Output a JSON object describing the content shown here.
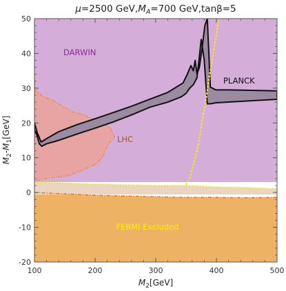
{
  "chart_data": {
    "type": "area",
    "title": "μ=2500 GeV,M_A=700 GeV,tanβ=5",
    "title_parts": {
      "mu": "μ",
      "mu_val": "=2500 GeV,",
      "ma": "M",
      "ma_sub": "A",
      "ma_val": "=700 GeV,tanβ=5"
    },
    "xlabel": "M₂[GeV]",
    "xlabel_parts": {
      "main": "M",
      "sub": "2",
      "unit": "[GeV]"
    },
    "ylabel": "M₂-M₁[GeV]",
    "ylabel_parts": {
      "m2": "M",
      "m2_sub": "2",
      "dash": "-",
      "m1": "M",
      "m1_sub": "1",
      "unit": "[GeV]"
    },
    "xlim": [
      100,
      500
    ],
    "ylim": [
      -20,
      50
    ],
    "xticks": [
      100,
      200,
      300,
      400,
      500
    ],
    "yticks": [
      -20,
      -10,
      0,
      10,
      20,
      30,
      40,
      50
    ],
    "grid": false,
    "colors": {
      "darwin_fill": "#d4aed8",
      "fermi_fill": "#eeb264",
      "fermi_line": "#e06a28",
      "lhc_fill": "#e9a39e",
      "lhc_line": "#f08a3a",
      "planck_fill": "#9b8aa2",
      "planck_line": "#111111",
      "yellow_line": "#f4e61e",
      "yellow_band": "#e9d5c0",
      "darwin_text": "#8e2a96",
      "lhc_text": "#b8541a",
      "fermi_text": "#ffee00",
      "planck_text": "#111111"
    },
    "labels": {
      "darwin": "DARWIN",
      "planck": "PLANCK",
      "lhc": "LHC",
      "fermi": "FERMI Excluded"
    },
    "regions": {
      "darwin": {
        "name": "DARWIN",
        "x": [
          100,
          500,
          500,
          100
        ],
        "y": [
          50,
          50,
          3,
          3
        ]
      },
      "yellow_band": {
        "x": [
          100,
          150,
          200,
          250,
          300,
          350,
          400,
          450,
          500,
          500,
          100
        ],
        "y": [
          3,
          2.7,
          2.4,
          2.2,
          2.0,
          2.0,
          1.6,
          1.4,
          1.0,
          -0.6,
          -0.6
        ]
      },
      "fermi": {
        "name": "FERMI Excluded",
        "boundary_x": [
          100,
          150,
          200,
          250,
          300,
          350,
          400,
          450,
          500
        ],
        "boundary_y": [
          0.0,
          -0.4,
          -0.8,
          -1.0,
          -1.2,
          -1.4,
          -1.4,
          -1.5,
          -1.4
        ]
      },
      "lhc": {
        "name": "LHC",
        "x": [
          100,
          101,
          103,
          108,
          115,
          123,
          130,
          140,
          150,
          165,
          180,
          190,
          200,
          215,
          225,
          232,
          222,
          212,
          200,
          180,
          160,
          140,
          120,
          105,
          100
        ],
        "y": [
          34,
          30,
          29,
          28.5,
          27.5,
          27,
          26.5,
          25.5,
          24.5,
          23,
          22.5,
          21.5,
          21,
          20,
          18.5,
          16,
          14,
          10,
          8,
          6.5,
          5,
          4.5,
          4,
          3.5,
          3.5
        ]
      },
      "planck": {
        "name": "PLANCK",
        "upper_x": [
          100,
          105,
          111,
          120,
          140,
          170,
          200,
          230,
          260,
          290,
          320,
          345,
          352,
          358,
          362,
          365,
          368,
          372,
          376,
          381,
          385,
          390,
          398,
          400,
          420,
          450,
          480,
          500
        ],
        "upper_y": [
          20,
          17,
          14.5,
          15.5,
          17.5,
          19.5,
          21.2,
          23,
          24.8,
          26.8,
          28.8,
          31.5,
          34,
          36.5,
          35,
          38,
          34,
          36,
          41,
          48,
          50,
          30.3,
          29.6,
          29.5,
          29.5,
          29.4,
          29.3,
          29.2
        ],
        "lower_x": [
          500,
          480,
          450,
          420,
          400,
          390,
          385,
          380,
          375,
          368,
          362,
          356,
          350,
          342,
          320,
          290,
          260,
          230,
          200,
          170,
          140,
          120,
          112,
          108,
          104,
          100
        ],
        "lower_y": [
          26.8,
          26.6,
          26.3,
          26.0,
          25.8,
          25.5,
          25.5,
          38,
          44,
          33,
          31,
          30,
          28.5,
          27.5,
          26,
          24.5,
          22.3,
          20.3,
          18.5,
          16.8,
          15,
          14,
          13.3,
          14,
          16.5,
          18
        ]
      },
      "yellow_dashed": {
        "x": [
          350,
          356,
          362,
          368,
          372,
          376,
          380,
          384,
          388,
          393,
          398,
          403,
          407
        ],
        "y": [
          2.2,
          4,
          8,
          12,
          15.5,
          20,
          24,
          28,
          33,
          38,
          43,
          49,
          53
        ]
      }
    }
  }
}
